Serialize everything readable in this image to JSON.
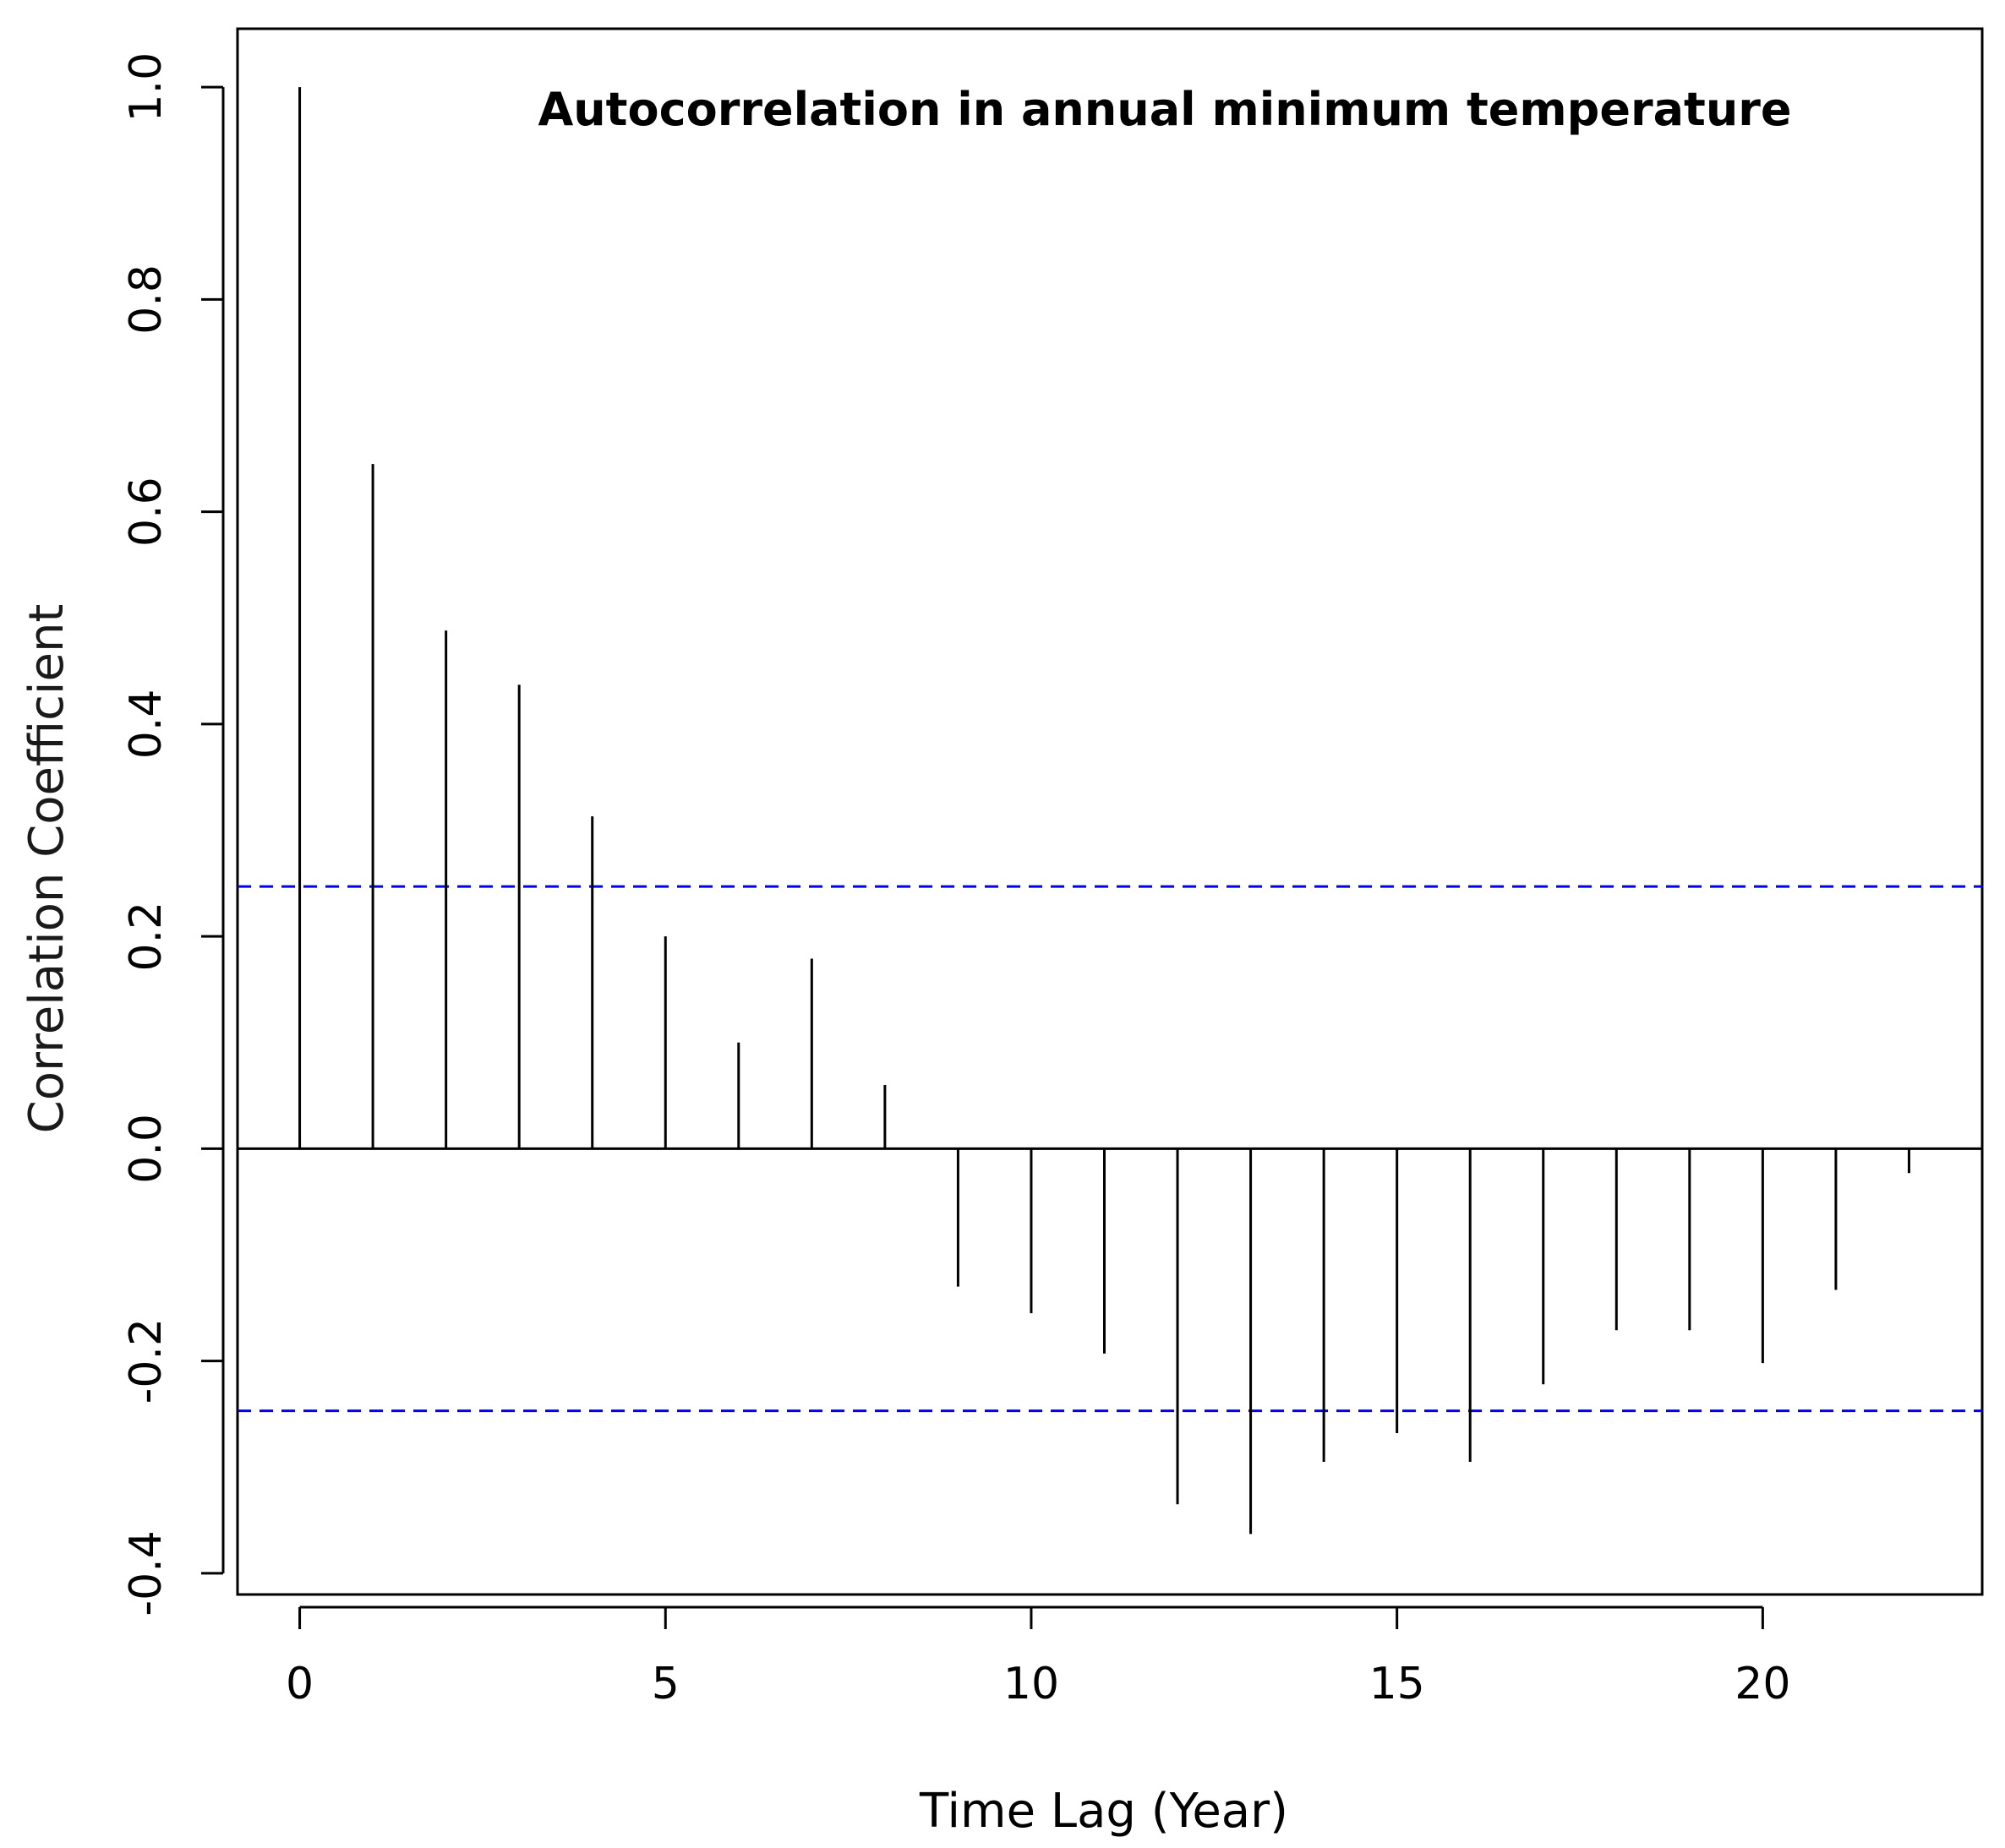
{
  "chart_data": {
    "type": "bar",
    "title": "Autocorrelation in annual minimum temperature",
    "xlabel": "Time Lag (Year)",
    "ylabel": "Correlation Coefficient",
    "x": [
      0,
      1,
      2,
      3,
      4,
      5,
      6,
      7,
      8,
      9,
      10,
      11,
      12,
      13,
      14,
      15,
      16,
      17,
      18,
      19,
      20,
      21,
      22
    ],
    "values": [
      1.0,
      0.645,
      0.488,
      0.437,
      0.313,
      0.2,
      0.1,
      0.179,
      0.06,
      -0.13,
      -0.155,
      -0.193,
      -0.335,
      -0.363,
      -0.295,
      -0.268,
      -0.295,
      -0.222,
      -0.171,
      -0.171,
      -0.202,
      -0.133,
      -0.023
    ],
    "xlim": [
      -0.85,
      23
    ],
    "ylim": [
      -0.42,
      1.055
    ],
    "xticks": [
      0,
      5,
      10,
      15,
      20
    ],
    "xtick_labels": [
      "0",
      "5",
      "10",
      "15",
      "20"
    ],
    "yticks": [
      -0.4,
      -0.2,
      0.0,
      0.2,
      0.4,
      0.6,
      0.8,
      1.0
    ],
    "ytick_labels": [
      "-0.4",
      "-0.2",
      "0.0",
      "0.2",
      "0.4",
      "0.6",
      "0.8",
      "1.0"
    ],
    "confidence_bounds": [
      0.247,
      -0.247
    ],
    "zero_line": 0,
    "grid": false,
    "colors": {
      "bars": "#000000",
      "confidence": "#0000ee",
      "axis": "#000000",
      "ylabel": "#1a1a1a"
    }
  }
}
